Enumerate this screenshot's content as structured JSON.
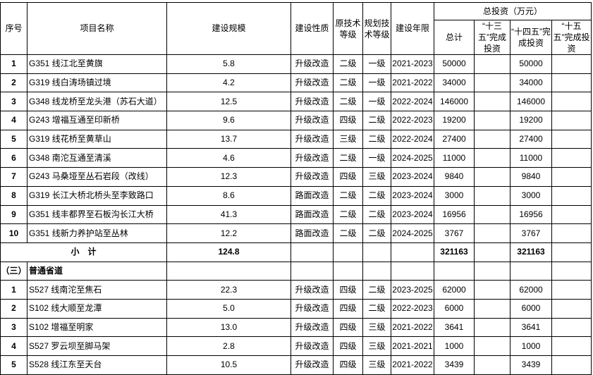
{
  "header": {
    "seq": "序号",
    "name": "项目名称",
    "scale": "建设规模",
    "nature": "建设性质",
    "orig_grade": "原技术等级",
    "plan_grade": "规划技术等级",
    "period": "建设年限",
    "invest_group": "总投资（万元）",
    "total": "总计",
    "p13": "“十三五”完成投资",
    "p14": "“十四五”完成投资",
    "p15": "“十五五”完成投资"
  },
  "rows_a": [
    {
      "seq": "1",
      "name": "G351 线江北至黄旗",
      "scale": "5.8",
      "nature": "升级改造",
      "orig": "二级",
      "plan": "一级",
      "period": "2021-2023",
      "total": "50000",
      "p13": "",
      "p14": "50000",
      "p15": ""
    },
    {
      "seq": "2",
      "name": "G319 线白涛场镇过境",
      "scale": "4.2",
      "nature": "升级改造",
      "orig": "二级",
      "plan": "一级",
      "period": "2021-2022",
      "total": "34000",
      "p13": "",
      "p14": "34000",
      "p15": ""
    },
    {
      "seq": "3",
      "name": "G348 线龙桥至龙头港（苏石大道）",
      "scale": "12.5",
      "nature": "升级改造",
      "orig": "二级",
      "plan": "一级",
      "period": "2022-2024",
      "total": "146000",
      "p13": "",
      "p14": "146000",
      "p15": ""
    },
    {
      "seq": "4",
      "name": "G243 增福互通至印新桥",
      "scale": "9.6",
      "nature": "升级改造",
      "orig": "四级",
      "plan": "二级",
      "period": "2022-2023",
      "total": "19200",
      "p13": "",
      "p14": "19200",
      "p15": ""
    },
    {
      "seq": "5",
      "name": "G319 线花桥至黄草山",
      "scale": "13.7",
      "nature": "升级改造",
      "orig": "三级",
      "plan": "二级",
      "period": "2022-2024",
      "total": "27400",
      "p13": "",
      "p14": "27400",
      "p15": ""
    },
    {
      "seq": "6",
      "name": "G348 南沱互通至清溪",
      "scale": "4.6",
      "nature": "升级改造",
      "orig": "二级",
      "plan": "一级",
      "period": "2024-2025",
      "total": "11000",
      "p13": "",
      "p14": "11000",
      "p15": ""
    },
    {
      "seq": "7",
      "name": "G243 马桑垭至丛石岩段（改线）",
      "scale": "12.3",
      "nature": "升级改造",
      "orig": "四级",
      "plan": "三级",
      "period": "2023-2024",
      "total": "9840",
      "p13": "",
      "p14": "9840",
      "p15": ""
    },
    {
      "seq": "8",
      "name": "G319 长江大桥北桥头至李致路口",
      "scale": "8.6",
      "nature": "路面改造",
      "orig": "二级",
      "plan": "二级",
      "period": "2023-2024",
      "total": "3000",
      "p13": "",
      "p14": "3000",
      "p15": ""
    },
    {
      "seq": "9",
      "name": "G351 线丰都界至石板沟长江大桥",
      "scale": "41.3",
      "nature": "路面改造",
      "orig": "二级",
      "plan": "二级",
      "period": "2023-2024",
      "total": "16956",
      "p13": "",
      "p14": "16956",
      "p15": ""
    },
    {
      "seq": "10",
      "name": "G351 线新力养护站至丛林",
      "scale": "12.2",
      "nature": "路面改造",
      "orig": "二级",
      "plan": "二级",
      "period": "2024-2025",
      "total": "3767",
      "p13": "",
      "p14": "3767",
      "p15": ""
    }
  ],
  "subtotal": {
    "label": "小　计",
    "scale": "124.8",
    "total": "321163",
    "p14": "321163"
  },
  "section": {
    "seq": "（三）",
    "name": "普通省道"
  },
  "rows_b": [
    {
      "seq": "1",
      "name": "S527 线南沱至焦石",
      "scale": "22.3",
      "nature": "升级改造",
      "orig": "四级",
      "plan": "二级",
      "period": "2023-2025",
      "total": "62000",
      "p13": "",
      "p14": "62000",
      "p15": ""
    },
    {
      "seq": "2",
      "name": "S102 线大顺至龙潭",
      "scale": "5.0",
      "nature": "升级改造",
      "orig": "四级",
      "plan": "二级",
      "period": "2022-2023",
      "total": "6000",
      "p13": "",
      "p14": "6000",
      "p15": ""
    },
    {
      "seq": "3",
      "name": "S102 增福至明家",
      "scale": "13.0",
      "nature": "升级改造",
      "orig": "四级",
      "plan": "三级",
      "period": "2021-2022",
      "total": "3641",
      "p13": "",
      "p14": "3641",
      "p15": ""
    },
    {
      "seq": "4",
      "name": "S527 罗云坝至脚马架",
      "scale": "2.8",
      "nature": "升级改造",
      "orig": "四级",
      "plan": "三级",
      "period": "2021-2021",
      "total": "1000",
      "p13": "",
      "p14": "1000",
      "p15": ""
    },
    {
      "seq": "5",
      "name": "S528 线江东至天台",
      "scale": "10.5",
      "nature": "升级改造",
      "orig": "四级",
      "plan": "三级",
      "period": "2021-2022",
      "total": "3439",
      "p13": "",
      "p14": "3439",
      "p15": ""
    }
  ]
}
